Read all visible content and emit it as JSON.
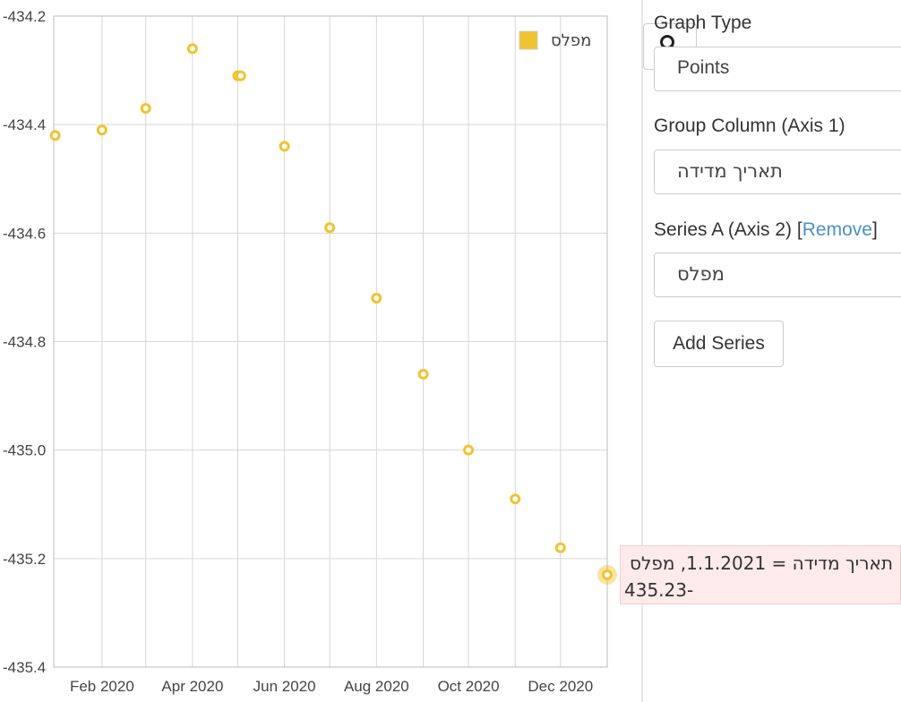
{
  "chart_data": {
    "type": "scatter",
    "title": "",
    "xlabel": "",
    "ylabel": "",
    "x_tick_labels": [
      "Feb 2020",
      "Apr 2020",
      "Jun 2020",
      "Aug 2020",
      "Oct 2020",
      "Dec 2020"
    ],
    "y_tick_labels": [
      "-434.2",
      "-434.4",
      "-434.6",
      "-434.8",
      "-435.0",
      "-435.2",
      "-435.4"
    ],
    "xlim": [
      "2019-12-31",
      "2021-01-01"
    ],
    "ylim": [
      -435.4,
      -434.2
    ],
    "grid": true,
    "legend_position": "top-right",
    "series": [
      {
        "name": "מפלס",
        "color": "#f0c330",
        "points": [
          {
            "x": "2020-01-01",
            "y": -434.42
          },
          {
            "x": "2020-02-01",
            "y": -434.41
          },
          {
            "x": "2020-03-01",
            "y": -434.37
          },
          {
            "x": "2020-04-01",
            "y": -434.26
          },
          {
            "x": "2020-05-01",
            "y": -434.31
          },
          {
            "x": "2020-05-03",
            "y": -434.31
          },
          {
            "x": "2020-06-01",
            "y": -434.44
          },
          {
            "x": "2020-07-01",
            "y": -434.59
          },
          {
            "x": "2020-08-01",
            "y": -434.72
          },
          {
            "x": "2020-09-01",
            "y": -434.86
          },
          {
            "x": "2020-10-01",
            "y": -435.0
          },
          {
            "x": "2020-11-01",
            "y": -435.09
          },
          {
            "x": "2020-12-01",
            "y": -435.18
          },
          {
            "x": "2021-01-01",
            "y": -435.23
          }
        ]
      }
    ],
    "highlighted_point": {
      "x": "2021-01-01",
      "y": -435.23
    }
  },
  "tooltip": {
    "line1": "תאריך מדידה = 1.1.2021, מפלס =",
    "line2": "435.23-"
  },
  "sidebar": {
    "graph_type_label": "Graph Type",
    "graph_type_value": "Points",
    "group_column_label": "Group Column (Axis 1)",
    "group_column_value": "תאריך מדידה",
    "series_a_label": "Series A (Axis 2) [",
    "series_a_remove": "Remove",
    "series_a_label_end": "]",
    "series_a_value": "מפלס",
    "add_series_label": "Add Series",
    "search_icon": "search-icon"
  }
}
